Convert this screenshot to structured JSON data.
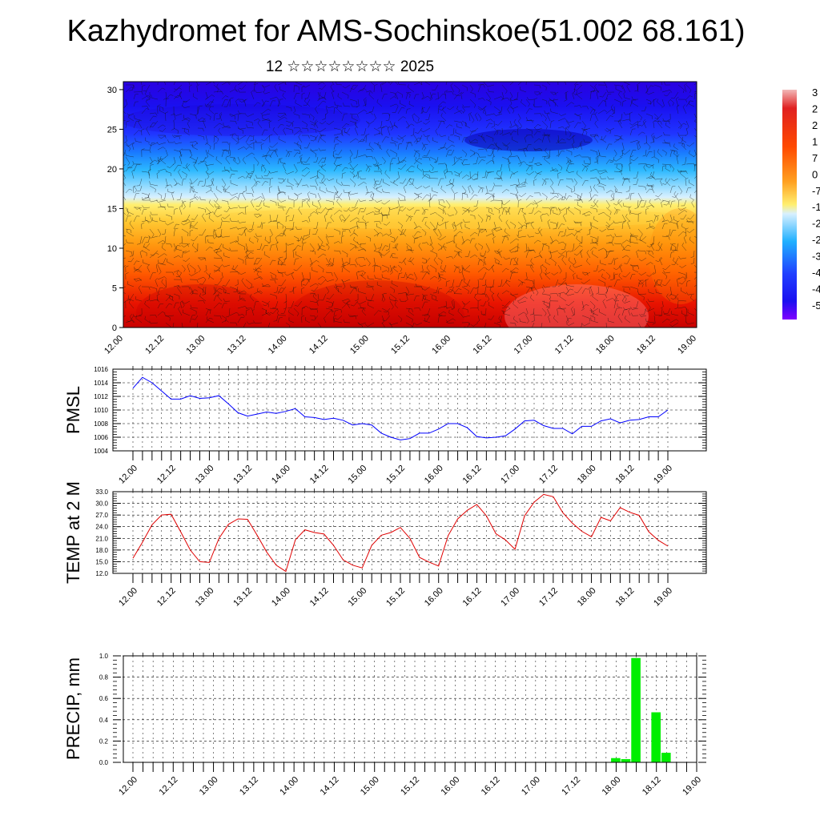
{
  "title": "Kazhydromet for AMS-Sochinskoe(51.002 68.161)",
  "subtitle": "12 ☆☆☆☆☆☆☆☆ 2025",
  "chart_data": [
    {
      "type": "heatmap",
      "panel": "cross-section",
      "x_ticks": [
        "12.00",
        "12.12",
        "13.00",
        "13.12",
        "14.00",
        "14.12",
        "15.00",
        "15.12",
        "16.00",
        "16.12",
        "17.00",
        "17.12",
        "18.00",
        "18.12",
        "19.00"
      ],
      "y_ticks": [
        0,
        5,
        10,
        15,
        20,
        25,
        30
      ],
      "ylim": [
        0,
        31
      ],
      "colorbar_labels": [
        "3",
        "2",
        "2",
        "1",
        "7",
        "0",
        "-7",
        "-1",
        "-2",
        "-2",
        "-3",
        "-4",
        "-4",
        "-5"
      ],
      "colors": {
        "hot": "#d40000",
        "warm": "#ff8c00",
        "mild": "#ffe14a",
        "cool": "#cfe8ff",
        "cold": "#00b4ff",
        "frigid": "#1a10ff",
        "coldest": "#7a00ff"
      }
    },
    {
      "type": "line",
      "panel": "pmsl",
      "ylabel": "PMSL",
      "x_ticks": [
        "12.00",
        "12.12",
        "13.00",
        "13.12",
        "14.00",
        "14.12",
        "15.00",
        "15.12",
        "16.00",
        "16.12",
        "17.00",
        "17.12",
        "18.00",
        "18.12",
        "19.00"
      ],
      "y_ticks": [
        "1004",
        "1006",
        "1008",
        "1010",
        "1012",
        "1014",
        "1016"
      ],
      "ylim": [
        1004,
        1016
      ],
      "color": "#0000ff",
      "values": [
        1013.2,
        1014.8,
        1014.0,
        1012.8,
        1011.6,
        1011.6,
        1012.1,
        1011.7,
        1011.8,
        1012.1,
        1010.9,
        1009.6,
        1009.1,
        1009.4,
        1009.7,
        1009.5,
        1009.8,
        1010.2,
        1009.0,
        1008.9,
        1008.6,
        1008.8,
        1008.5,
        1007.8,
        1008.0,
        1007.8,
        1006.6,
        1006.0,
        1005.6,
        1005.8,
        1006.6,
        1006.6,
        1007.2,
        1008.0,
        1008.0,
        1007.4,
        1006.1,
        1005.9,
        1006.0,
        1006.2,
        1007.2,
        1008.4,
        1008.5,
        1007.7,
        1007.3,
        1007.3,
        1006.5,
        1007.6,
        1007.6,
        1008.4,
        1008.7,
        1008.1,
        1008.5,
        1008.6,
        1009.0,
        1009.0,
        1010.0
      ]
    },
    {
      "type": "line",
      "panel": "temperature",
      "ylabel": "TEMP at 2 M",
      "x_ticks": [
        "12.00",
        "12.12",
        "13.00",
        "13.12",
        "14.00",
        "14.12",
        "15.00",
        "15.12",
        "16.00",
        "16.12",
        "17.00",
        "17.12",
        "18.00",
        "18.12",
        "19.00"
      ],
      "y_ticks": [
        "12.0",
        "15.0",
        "18.0",
        "21.0",
        "24.0",
        "27.0",
        "30.0",
        "33.0"
      ],
      "ylim": [
        12,
        33
      ],
      "color": "#e00000",
      "values": [
        15.9,
        20.0,
        24.5,
        27.0,
        27.2,
        22.7,
        18.0,
        15.0,
        14.8,
        21.0,
        24.6,
        26.0,
        25.9,
        21.8,
        17.5,
        14.1,
        12.5,
        20.6,
        23.2,
        22.5,
        22.1,
        19.2,
        15.5,
        14.1,
        13.4,
        19.2,
        21.8,
        22.5,
        23.8,
        21.0,
        16.1,
        14.9,
        13.9,
        21.7,
        26.0,
        28.2,
        29.7,
        26.8,
        22.2,
        20.6,
        18.2,
        26.8,
        30.3,
        32.3,
        31.7,
        27.6,
        24.9,
        22.8,
        21.4,
        26.4,
        25.5,
        28.9,
        27.7,
        26.9,
        22.7,
        20.5,
        19.0
      ]
    },
    {
      "type": "bar",
      "panel": "precipitation",
      "ylabel": "PRECIP, mm",
      "x_ticks": [
        "12.00",
        "12.12",
        "13.00",
        "13.12",
        "14.00",
        "14.12",
        "15.00",
        "15.12",
        "16.00",
        "16.12",
        "17.00",
        "17.12",
        "18.00",
        "18.12",
        "19.00"
      ],
      "y_ticks": [
        "0.0",
        "0.2",
        "0.4",
        "0.6",
        "0.8",
        "1.0"
      ],
      "ylim": [
        0,
        1
      ],
      "color": "#00ee00",
      "values": [
        0,
        0,
        0,
        0,
        0,
        0,
        0,
        0,
        0,
        0,
        0,
        0,
        0,
        0,
        0,
        0,
        0,
        0,
        0,
        0,
        0,
        0,
        0,
        0,
        0,
        0,
        0,
        0,
        0,
        0,
        0,
        0,
        0,
        0,
        0,
        0,
        0,
        0,
        0,
        0,
        0,
        0,
        0,
        0,
        0,
        0,
        0,
        0,
        0.04,
        0.03,
        0.98,
        0,
        0.47,
        0.09,
        0,
        0,
        0
      ]
    }
  ]
}
